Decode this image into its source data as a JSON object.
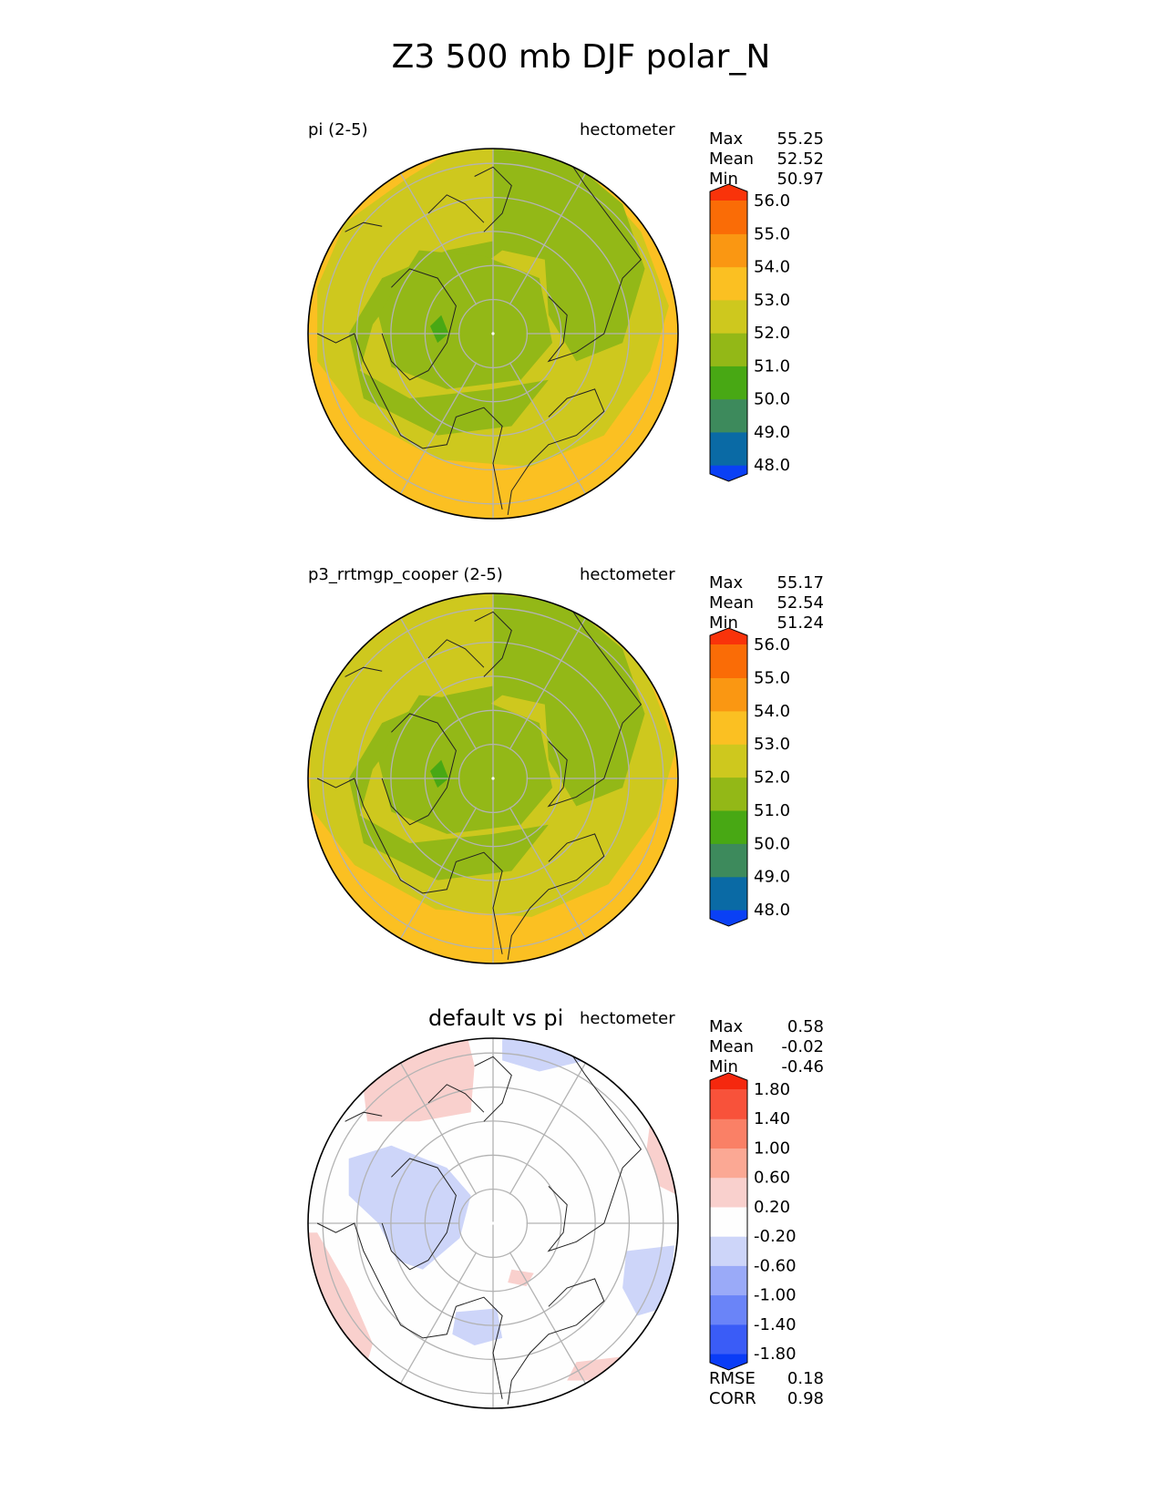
{
  "title": "Z3 500 mb DJF polar_N",
  "panels": [
    {
      "left_label": "pi (2-5)",
      "right_label": "hectometer",
      "stats": [
        {
          "label": "Max",
          "value": "55.25"
        },
        {
          "label": "Mean",
          "value": "52.52"
        },
        {
          "label": "Min",
          "value": "50.97"
        }
      ],
      "colorbar": {
        "levels": [
          "48.0",
          "49.0",
          "50.0",
          "51.0",
          "52.0",
          "53.0",
          "54.0",
          "55.0",
          "56.0"
        ],
        "colors": [
          "#0a40f5",
          "#0a6aa5",
          "#3d8a5c",
          "#48a814",
          "#93b817",
          "#cec81e",
          "#fbc022",
          "#fa9712",
          "#fa6c06",
          "#f9330a"
        ]
      }
    },
    {
      "left_label": "p3_rrtmgp_cooper (2-5)",
      "right_label": "hectometer",
      "stats": [
        {
          "label": "Max",
          "value": "55.17"
        },
        {
          "label": "Mean",
          "value": "52.54"
        },
        {
          "label": "Min",
          "value": "51.24"
        }
      ],
      "colorbar": {
        "levels": [
          "48.0",
          "49.0",
          "50.0",
          "51.0",
          "52.0",
          "53.0",
          "54.0",
          "55.0",
          "56.0"
        ],
        "colors": [
          "#0a40f5",
          "#0a6aa5",
          "#3d8a5c",
          "#48a814",
          "#93b817",
          "#cec81e",
          "#fbc022",
          "#fa9712",
          "#fa6c06",
          "#f9330a"
        ]
      }
    },
    {
      "center_label": "default vs pi",
      "right_label": "hectometer",
      "stats": [
        {
          "label": "Max",
          "value": "0.58"
        },
        {
          "label": "Mean",
          "value": "-0.02"
        },
        {
          "label": "Min",
          "value": "-0.46"
        }
      ],
      "colorbar": {
        "levels": [
          "-1.80",
          "-1.40",
          "-1.00",
          "-0.60",
          "-0.20",
          "0.20",
          "0.60",
          "1.00",
          "1.40",
          "1.80"
        ],
        "colors": [
          "#0a3cf7",
          "#3a5cf7",
          "#6a84f8",
          "#9aaaf8",
          "#cdd5f9",
          "#fefefe",
          "#f9d0cd",
          "#fba894",
          "#fa8066",
          "#f8523a",
          "#f5280e"
        ]
      },
      "diff_stats": [
        {
          "label": "RMSE",
          "value": "0.18"
        },
        {
          "label": "CORR",
          "value": "0.98"
        }
      ]
    }
  ],
  "chart_data": [
    {
      "type": "polar-contour-map",
      "title": "pi (2-5)",
      "units": "hectometer",
      "projection": "north polar stereographic",
      "stats": {
        "max": 55.25,
        "mean": 52.52,
        "min": 50.97
      },
      "contour_levels": [
        48,
        49,
        50,
        51,
        52,
        53,
        54,
        55,
        56
      ],
      "colorbar_extend": "both"
    },
    {
      "type": "polar-contour-map",
      "title": "p3_rrtmgp_cooper (2-5)",
      "units": "hectometer",
      "projection": "north polar stereographic",
      "stats": {
        "max": 55.17,
        "mean": 52.54,
        "min": 51.24
      },
      "contour_levels": [
        48,
        49,
        50,
        51,
        52,
        53,
        54,
        55,
        56
      ],
      "colorbar_extend": "both"
    },
    {
      "type": "polar-contour-map",
      "title": "default vs pi",
      "units": "hectometer",
      "projection": "north polar stereographic",
      "stats": {
        "max": 0.58,
        "mean": -0.02,
        "min": -0.46,
        "rmse": 0.18,
        "corr": 0.98
      },
      "contour_levels": [
        -1.8,
        -1.4,
        -1.0,
        -0.6,
        -0.2,
        0.2,
        0.6,
        1.0,
        1.4,
        1.8
      ],
      "colorbar_extend": "both"
    }
  ]
}
